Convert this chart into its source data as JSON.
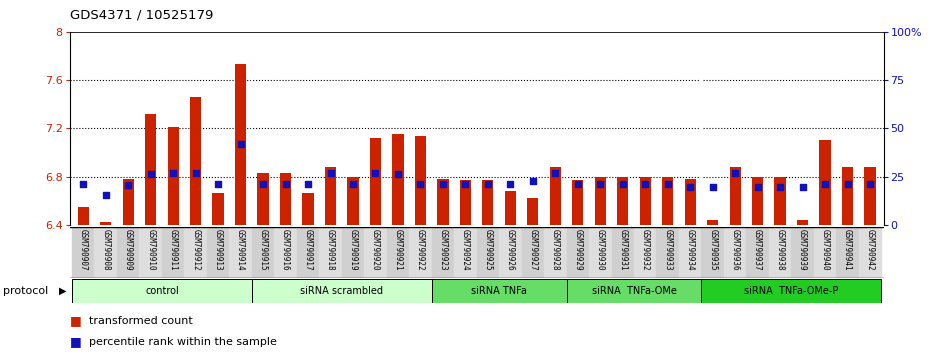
{
  "title": "GDS4371 / 10525179",
  "samples": [
    "GSM790907",
    "GSM790908",
    "GSM790909",
    "GSM790910",
    "GSM790911",
    "GSM790912",
    "GSM790913",
    "GSM790914",
    "GSM790915",
    "GSM790916",
    "GSM790917",
    "GSM790918",
    "GSM790919",
    "GSM790920",
    "GSM790921",
    "GSM790922",
    "GSM790923",
    "GSM790924",
    "GSM790925",
    "GSM790926",
    "GSM790927",
    "GSM790928",
    "GSM790929",
    "GSM790930",
    "GSM790931",
    "GSM790932",
    "GSM790933",
    "GSM790934",
    "GSM790935",
    "GSM790936",
    "GSM790937",
    "GSM790938",
    "GSM790939",
    "GSM790940",
    "GSM790941",
    "GSM790942"
  ],
  "red_values": [
    6.55,
    6.42,
    6.78,
    7.32,
    7.21,
    7.46,
    6.66,
    7.73,
    6.83,
    6.83,
    6.66,
    6.88,
    6.8,
    7.12,
    7.15,
    7.14,
    6.78,
    6.77,
    6.77,
    6.68,
    6.62,
    6.88,
    6.77,
    6.8,
    6.8,
    6.8,
    6.8,
    6.78,
    6.44,
    6.88,
    6.8,
    6.8,
    6.44,
    7.1,
    6.88,
    6.88
  ],
  "blue_y_values": [
    6.74,
    6.65,
    6.73,
    6.82,
    6.83,
    6.83,
    6.74,
    7.07,
    6.74,
    6.74,
    6.74,
    6.83,
    6.74,
    6.83,
    6.82,
    6.74,
    6.74,
    6.74,
    6.74,
    6.74,
    6.76,
    6.83,
    6.74,
    6.74,
    6.74,
    6.74,
    6.74,
    6.71,
    6.71,
    6.83,
    6.71,
    6.71,
    6.71,
    6.74,
    6.74,
    6.74
  ],
  "groups": [
    {
      "label": "control",
      "start": 0,
      "end": 8,
      "color": "#ccffcc"
    },
    {
      "label": "siRNA scrambled",
      "start": 8,
      "end": 16,
      "color": "#ccffcc"
    },
    {
      "label": "siRNA TNFa",
      "start": 16,
      "end": 22,
      "color": "#66dd66"
    },
    {
      "label": "siRNA  TNFa-OMe",
      "start": 22,
      "end": 28,
      "color": "#66dd66"
    },
    {
      "label": "siRNA  TNFa-OMe-P",
      "start": 28,
      "end": 36,
      "color": "#22cc22"
    }
  ],
  "ylim_left": [
    6.4,
    8.0
  ],
  "yticks_left": [
    6.4,
    6.8,
    7.2,
    7.6,
    8.0
  ],
  "ytick_labels_left": [
    "6.4",
    "6.8",
    "7.2",
    "7.6",
    "8"
  ],
  "yticks_right_pos": [
    6.4,
    6.8,
    7.2,
    7.6,
    8.0
  ],
  "ytick_labels_right": [
    "0",
    "25",
    "50",
    "75",
    "100%"
  ],
  "hlines": [
    6.8,
    7.2,
    7.6
  ],
  "bar_color_red": "#cc2200",
  "bar_color_blue": "#1111bb",
  "legend_red": "transformed count",
  "legend_blue": "percentile rank within the sample",
  "protocol_label": "protocol"
}
